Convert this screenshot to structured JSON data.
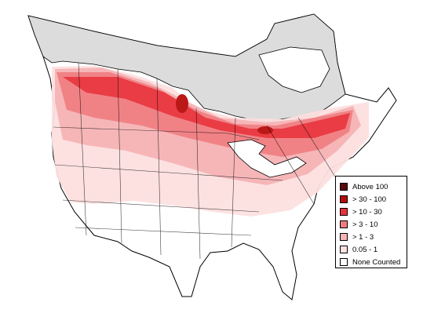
{
  "map": {
    "legend": {
      "items": [
        {
          "label": "Above 100",
          "color": "#5a0a0a"
        },
        {
          "label": "> 30 - 100",
          "color": "#b80c0c"
        },
        {
          "label": "> 10 - 30",
          "color": "#e8323a"
        },
        {
          "label": "> 3 - 10",
          "color": "#f07c80"
        },
        {
          "label": "> 1 - 3",
          "color": "#f6b3b5"
        },
        {
          "label": "0.05 - 1",
          "color": "#fde0e0"
        },
        {
          "label": "None Counted",
          "color": "#ffffff"
        }
      ]
    },
    "colors": {
      "no_data": "#dcdcdc",
      "water": "#ffffff",
      "outline": "#000000"
    }
  }
}
